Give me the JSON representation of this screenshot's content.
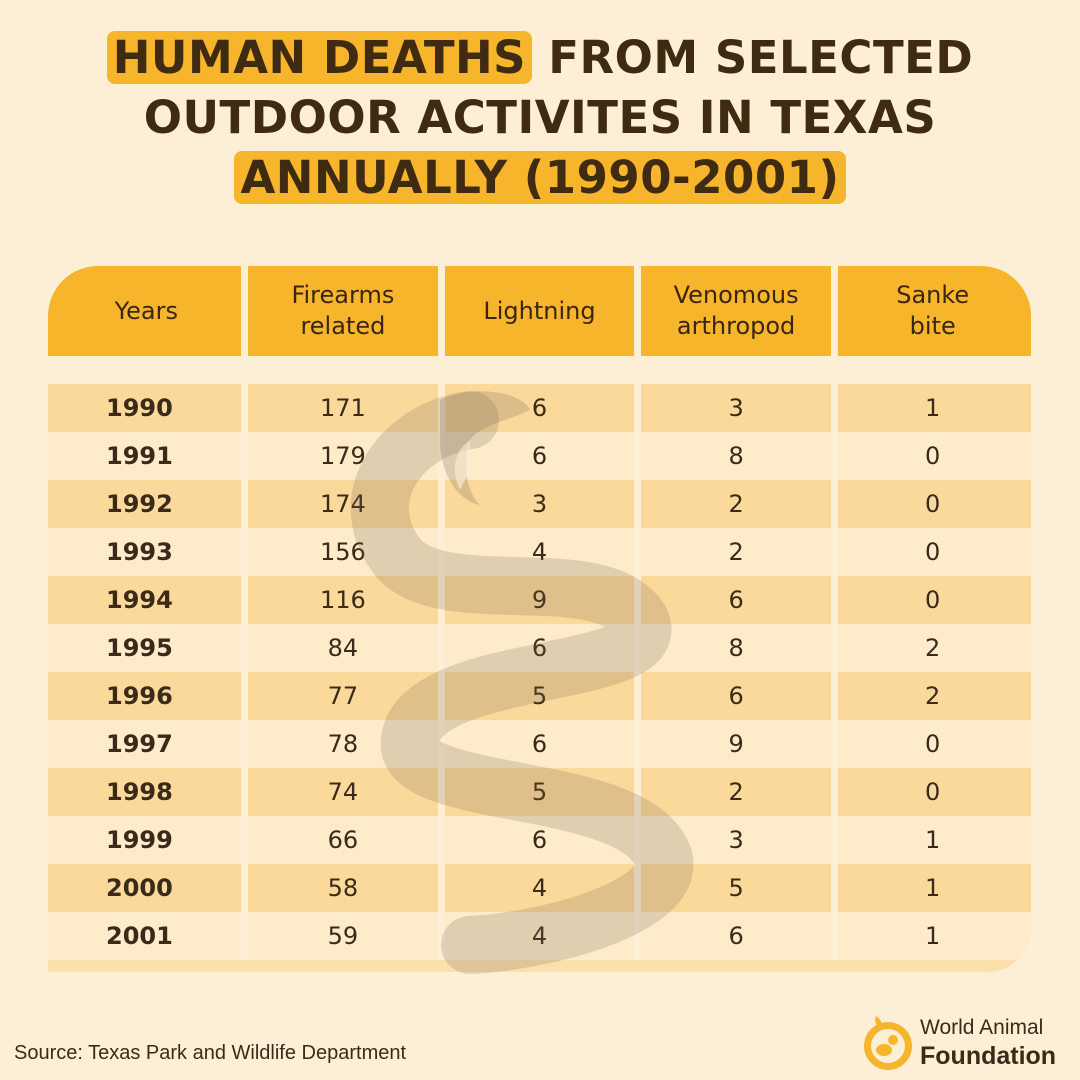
{
  "title": {
    "line1_highlight": "HUMAN DEATHS",
    "line1_rest": " FROM SELECTED",
    "line2": "OUTDOOR ACTIVITES IN TEXAS",
    "line3_highlight": "ANNUALLY (1990-2001)"
  },
  "source": "Source: Texas Park and Wildlife Department",
  "logo": {
    "line1": "World Animal",
    "line2": "Foundation",
    "icon": "animal-foundation-logo-icon"
  },
  "colors": {
    "accent": "#f7b52b",
    "background": "#fdefd6",
    "stripe_dark": "#fbd99a",
    "stripe_light": "#fdebc9",
    "text": "#3a2a1a"
  },
  "chart_data": {
    "type": "table",
    "columns": [
      "Years",
      "Firearms related",
      "Lightning",
      "Venomous arthropod",
      "Sanke bite"
    ],
    "rows": [
      [
        "1990",
        "171",
        "6",
        "3",
        "1"
      ],
      [
        "1991",
        "179",
        "6",
        "8",
        "0"
      ],
      [
        "1992",
        "174",
        "3",
        "2",
        "0"
      ],
      [
        "1993",
        "156",
        "4",
        "2",
        "0"
      ],
      [
        "1994",
        "116",
        "9",
        "6",
        "0"
      ],
      [
        "1995",
        "84",
        "6",
        "8",
        "2"
      ],
      [
        "1996",
        "77",
        "5",
        "6",
        "2"
      ],
      [
        "1997",
        "78",
        "6",
        "9",
        "0"
      ],
      [
        "1998",
        "74",
        "5",
        "2",
        "0"
      ],
      [
        "1999",
        "66",
        "6",
        "3",
        "1"
      ],
      [
        "2000",
        "58",
        "4",
        "5",
        "1"
      ],
      [
        "2001",
        "59",
        "4",
        "6",
        "1"
      ]
    ]
  }
}
